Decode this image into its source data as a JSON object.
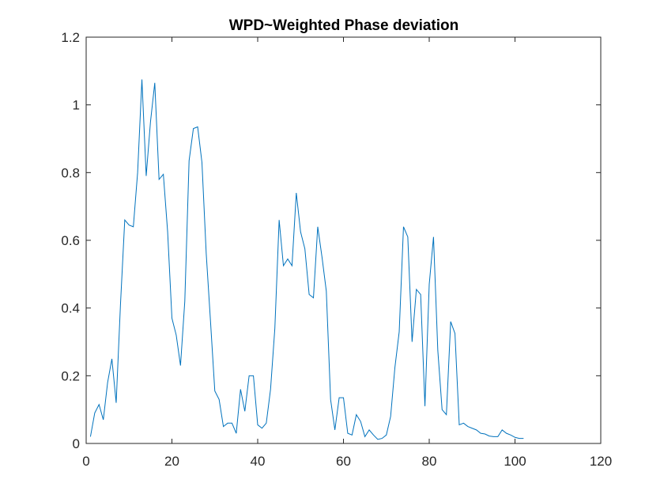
{
  "chart_data": {
    "type": "line",
    "title": "WPD~Weighted Phase deviation",
    "xlabel": "",
    "ylabel": "",
    "xlim": [
      0,
      120
    ],
    "ylim": [
      0,
      1.2
    ],
    "xticks": [
      0,
      20,
      40,
      60,
      80,
      100,
      120
    ],
    "yticks": [
      0,
      0.2,
      0.4,
      0.6,
      0.8,
      1,
      1.2
    ],
    "xtick_labels": [
      "0",
      "20",
      "40",
      "60",
      "80",
      "100",
      "120"
    ],
    "ytick_labels": [
      "0",
      "0.2",
      "0.4",
      "0.6",
      "0.8",
      "1",
      "1.2"
    ],
    "grid": false,
    "line_color": "#0072BD",
    "series": [
      {
        "x": [
          1,
          2,
          3,
          4,
          5,
          6,
          7,
          8,
          9,
          10,
          11,
          12,
          13,
          14,
          15,
          16,
          17,
          18,
          19,
          20,
          21,
          22,
          23,
          24,
          25,
          26,
          27,
          28,
          29,
          30,
          31,
          32,
          33,
          34,
          35,
          36,
          37,
          38,
          39,
          40,
          41,
          42,
          43,
          44,
          45,
          46,
          47,
          48,
          49,
          50,
          51,
          52,
          53,
          54,
          55,
          56,
          57,
          58,
          59,
          60,
          61,
          62,
          63,
          64,
          65,
          66,
          67,
          68,
          69,
          70,
          71,
          72,
          73,
          74,
          75,
          76,
          77,
          78,
          79,
          80,
          81,
          82,
          83,
          84,
          85,
          86,
          87,
          88,
          89,
          90,
          91,
          92,
          93,
          94,
          95,
          96,
          97,
          98,
          99,
          100,
          101,
          102
        ],
        "y": [
          0.02,
          0.09,
          0.115,
          0.07,
          0.18,
          0.25,
          0.12,
          0.41,
          0.66,
          0.645,
          0.64,
          0.8,
          1.075,
          0.79,
          0.95,
          1.065,
          0.78,
          0.795,
          0.625,
          0.37,
          0.32,
          0.23,
          0.42,
          0.835,
          0.93,
          0.935,
          0.83,
          0.56,
          0.36,
          0.155,
          0.13,
          0.05,
          0.06,
          0.06,
          0.03,
          0.16,
          0.095,
          0.2,
          0.2,
          0.055,
          0.045,
          0.06,
          0.16,
          0.34,
          0.66,
          0.525,
          0.545,
          0.525,
          0.74,
          0.625,
          0.575,
          0.44,
          0.43,
          0.64,
          0.55,
          0.45,
          0.13,
          0.04,
          0.135,
          0.135,
          0.03,
          0.025,
          0.085,
          0.065,
          0.02,
          0.04,
          0.025,
          0.012,
          0.015,
          0.025,
          0.08,
          0.225,
          0.33,
          0.64,
          0.61,
          0.3,
          0.455,
          0.44,
          0.11,
          0.47,
          0.61,
          0.275,
          0.1,
          0.085,
          0.36,
          0.325,
          0.055,
          0.06,
          0.05,
          0.045,
          0.04,
          0.03,
          0.028,
          0.022,
          0.02,
          0.02,
          0.04,
          0.03,
          0.025,
          0.018,
          0.015,
          0.015
        ]
      }
    ]
  }
}
